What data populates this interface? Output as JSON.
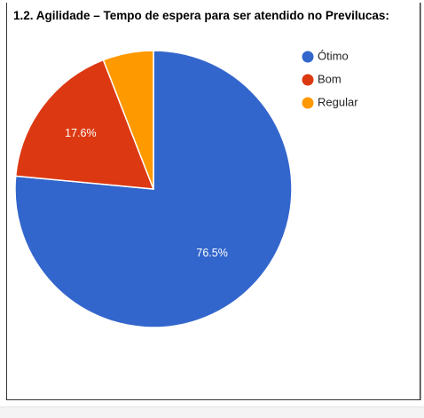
{
  "chart_data": {
    "type": "pie",
    "title": "1.2. Agilidade – Tempo de espera para ser atendido no Previlucas:",
    "slices": [
      {
        "label": "Ótimo",
        "value": 76.5,
        "display": "76.5%",
        "color": "#3366cc"
      },
      {
        "label": "Bom",
        "value": 17.6,
        "display": "17.6%",
        "color": "#dc3912"
      },
      {
        "label": "Regular",
        "value": 5.9,
        "display": "",
        "color": "#ff9900"
      }
    ],
    "legend_position": "right"
  }
}
